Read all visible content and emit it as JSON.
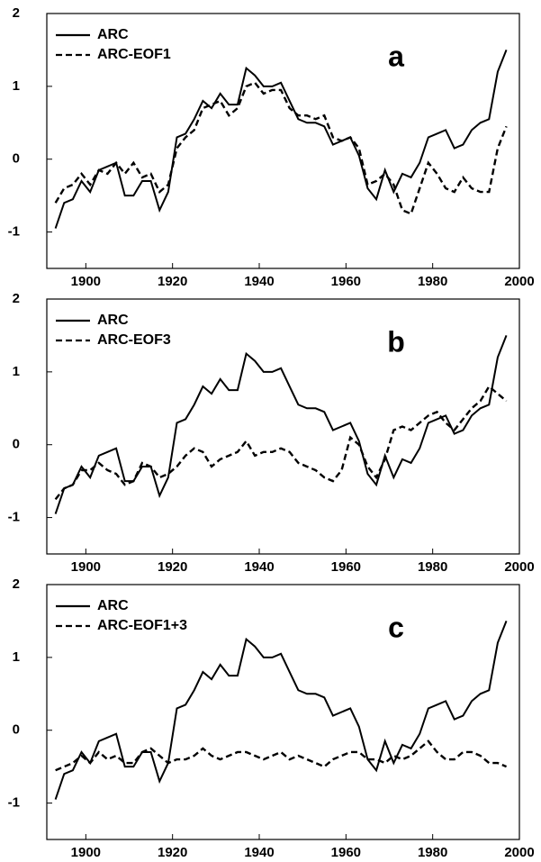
{
  "chart_data": [
    {
      "type": "line",
      "label": "a",
      "legend": "upper left",
      "x": [
        1893,
        1895,
        1897,
        1899,
        1901,
        1903,
        1905,
        1907,
        1909,
        1911,
        1913,
        1915,
        1917,
        1919,
        1921,
        1923,
        1925,
        1927,
        1929,
        1931,
        1933,
        1935,
        1937,
        1939,
        1941,
        1943,
        1945,
        1947,
        1949,
        1951,
        1953,
        1955,
        1957,
        1959,
        1961,
        1963,
        1965,
        1967,
        1969,
        1971,
        1973,
        1975,
        1977,
        1979,
        1981,
        1983,
        1985,
        1987,
        1989,
        1991,
        1993,
        1995,
        1997
      ],
      "xlim": [
        1891,
        2000
      ],
      "xticks": [
        1900,
        1920,
        1940,
        1960,
        1980,
        2000
      ],
      "ylim": [
        -1.5,
        2
      ],
      "yticks": [
        -1,
        0,
        1,
        2
      ],
      "series": [
        {
          "name": "ARC",
          "color": "#000000",
          "linestyle": "solid",
          "values": [
            -0.95,
            -0.6,
            -0.55,
            -0.3,
            -0.45,
            -0.15,
            -0.1,
            -0.05,
            -0.5,
            -0.5,
            -0.3,
            -0.3,
            -0.7,
            -0.45,
            0.3,
            0.35,
            0.55,
            0.8,
            0.7,
            0.9,
            0.75,
            0.75,
            1.25,
            1.15,
            1.0,
            1.0,
            1.05,
            0.8,
            0.55,
            0.5,
            0.5,
            0.45,
            0.2,
            0.25,
            0.3,
            0.05,
            -0.4,
            -0.55,
            -0.15,
            -0.45,
            -0.2,
            -0.25,
            -0.05,
            0.3,
            0.35,
            0.4,
            0.15,
            0.2,
            0.4,
            0.5,
            0.55,
            1.2,
            1.5
          ]
        },
        {
          "name": "ARC-EOF1",
          "color": "#000000",
          "linestyle": "dashed",
          "values": [
            -0.6,
            -0.4,
            -0.35,
            -0.2,
            -0.35,
            -0.15,
            -0.2,
            -0.05,
            -0.2,
            -0.05,
            -0.25,
            -0.2,
            -0.45,
            -0.35,
            0.15,
            0.3,
            0.4,
            0.7,
            0.75,
            0.8,
            0.6,
            0.7,
            1.0,
            1.05,
            0.9,
            0.95,
            0.95,
            0.7,
            0.6,
            0.6,
            0.55,
            0.6,
            0.3,
            0.25,
            0.3,
            0.15,
            -0.35,
            -0.3,
            -0.2,
            -0.35,
            -0.7,
            -0.75,
            -0.4,
            -0.05,
            -0.2,
            -0.4,
            -0.45,
            -0.25,
            -0.4,
            -0.45,
            -0.45,
            0.15,
            0.45
          ]
        }
      ]
    },
    {
      "type": "line",
      "label": "b",
      "legend": "upper left",
      "x": [
        1893,
        1895,
        1897,
        1899,
        1901,
        1903,
        1905,
        1907,
        1909,
        1911,
        1913,
        1915,
        1917,
        1919,
        1921,
        1923,
        1925,
        1927,
        1929,
        1931,
        1933,
        1935,
        1937,
        1939,
        1941,
        1943,
        1945,
        1947,
        1949,
        1951,
        1953,
        1955,
        1957,
        1959,
        1961,
        1963,
        1965,
        1967,
        1969,
        1971,
        1973,
        1975,
        1977,
        1979,
        1981,
        1983,
        1985,
        1987,
        1989,
        1991,
        1993,
        1995,
        1997
      ],
      "xlim": [
        1891,
        2000
      ],
      "xticks": [
        1900,
        1920,
        1940,
        1960,
        1980,
        2000
      ],
      "ylim": [
        -1.5,
        2
      ],
      "yticks": [
        -1,
        0,
        1,
        2
      ],
      "series": [
        {
          "name": "ARC",
          "color": "#000000",
          "linestyle": "solid",
          "values": [
            -0.95,
            -0.6,
            -0.55,
            -0.3,
            -0.45,
            -0.15,
            -0.1,
            -0.05,
            -0.5,
            -0.5,
            -0.3,
            -0.3,
            -0.7,
            -0.45,
            0.3,
            0.35,
            0.55,
            0.8,
            0.7,
            0.9,
            0.75,
            0.75,
            1.25,
            1.15,
            1.0,
            1.0,
            1.05,
            0.8,
            0.55,
            0.5,
            0.5,
            0.45,
            0.2,
            0.25,
            0.3,
            0.05,
            -0.4,
            -0.55,
            -0.15,
            -0.45,
            -0.2,
            -0.25,
            -0.05,
            0.3,
            0.35,
            0.4,
            0.15,
            0.2,
            0.4,
            0.5,
            0.55,
            1.2,
            1.5
          ]
        },
        {
          "name": "ARC-EOF3",
          "color": "#000000",
          "linestyle": "dashed",
          "values": [
            -0.75,
            -0.6,
            -0.55,
            -0.35,
            -0.35,
            -0.25,
            -0.35,
            -0.4,
            -0.55,
            -0.5,
            -0.25,
            -0.3,
            -0.45,
            -0.4,
            -0.3,
            -0.15,
            -0.05,
            -0.1,
            -0.3,
            -0.2,
            -0.15,
            -0.1,
            0.05,
            -0.15,
            -0.1,
            -0.1,
            -0.05,
            -0.1,
            -0.25,
            -0.3,
            -0.35,
            -0.45,
            -0.5,
            -0.35,
            0.1,
            0.0,
            -0.3,
            -0.45,
            -0.2,
            0.2,
            0.25,
            0.2,
            0.3,
            0.4,
            0.45,
            0.3,
            0.2,
            0.35,
            0.5,
            0.6,
            0.8,
            0.7,
            0.6
          ]
        }
      ]
    },
    {
      "type": "line",
      "label": "c",
      "legend": "upper left",
      "x": [
        1893,
        1895,
        1897,
        1899,
        1901,
        1903,
        1905,
        1907,
        1909,
        1911,
        1913,
        1915,
        1917,
        1919,
        1921,
        1923,
        1925,
        1927,
        1929,
        1931,
        1933,
        1935,
        1937,
        1939,
        1941,
        1943,
        1945,
        1947,
        1949,
        1951,
        1953,
        1955,
        1957,
        1959,
        1961,
        1963,
        1965,
        1967,
        1969,
        1971,
        1973,
        1975,
        1977,
        1979,
        1981,
        1983,
        1985,
        1987,
        1989,
        1991,
        1993,
        1995,
        1997
      ],
      "xlim": [
        1891,
        2000
      ],
      "xticks": [
        1900,
        1920,
        1940,
        1960,
        1980,
        2000
      ],
      "ylim": [
        -1.5,
        2
      ],
      "yticks": [
        -1,
        0,
        1,
        2
      ],
      "series": [
        {
          "name": "ARC",
          "color": "#000000",
          "linestyle": "solid",
          "values": [
            -0.95,
            -0.6,
            -0.55,
            -0.3,
            -0.45,
            -0.15,
            -0.1,
            -0.05,
            -0.5,
            -0.5,
            -0.3,
            -0.3,
            -0.7,
            -0.45,
            0.3,
            0.35,
            0.55,
            0.8,
            0.7,
            0.9,
            0.75,
            0.75,
            1.25,
            1.15,
            1.0,
            1.0,
            1.05,
            0.8,
            0.55,
            0.5,
            0.5,
            0.45,
            0.2,
            0.25,
            0.3,
            0.05,
            -0.4,
            -0.55,
            -0.15,
            -0.45,
            -0.2,
            -0.25,
            -0.05,
            0.3,
            0.35,
            0.4,
            0.15,
            0.2,
            0.4,
            0.5,
            0.55,
            1.2,
            1.5
          ]
        },
        {
          "name": "ARC-EOF1+3",
          "color": "#000000",
          "linestyle": "dashed",
          "values": [
            -0.55,
            -0.5,
            -0.45,
            -0.35,
            -0.45,
            -0.3,
            -0.4,
            -0.35,
            -0.45,
            -0.45,
            -0.3,
            -0.25,
            -0.35,
            -0.45,
            -0.4,
            -0.4,
            -0.35,
            -0.25,
            -0.35,
            -0.4,
            -0.35,
            -0.3,
            -0.3,
            -0.35,
            -0.4,
            -0.35,
            -0.3,
            -0.4,
            -0.35,
            -0.4,
            -0.45,
            -0.5,
            -0.4,
            -0.35,
            -0.3,
            -0.3,
            -0.4,
            -0.4,
            -0.45,
            -0.35,
            -0.4,
            -0.35,
            -0.25,
            -0.15,
            -0.3,
            -0.4,
            -0.4,
            -0.3,
            -0.3,
            -0.35,
            -0.45,
            -0.45,
            -0.5
          ]
        }
      ]
    }
  ]
}
